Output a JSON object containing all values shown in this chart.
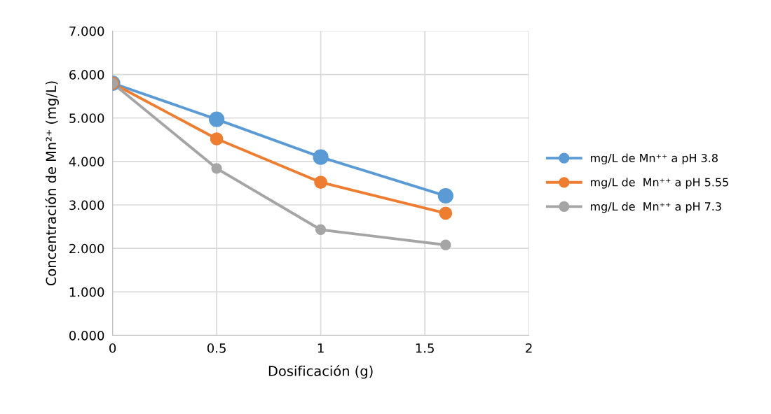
{
  "chart_data": {
    "type": "line",
    "xlabel": "Dosificación (g)",
    "ylabel": "Concentración de Mn²⁺ (mg/L)",
    "x": [
      0,
      0.5,
      1,
      1.6
    ],
    "series": [
      {
        "name": "mg/L de Mn⁺⁺ a pH 3.8",
        "color": "#5b9bd5",
        "values": [
          5.8,
          4.97,
          4.1,
          3.21
        ]
      },
      {
        "name": "mg/L de  Mn⁺⁺ a pH 5.55",
        "color": "#ed7d31",
        "values": [
          5.8,
          4.52,
          3.52,
          2.81
        ]
      },
      {
        "name": "mg/L de  Mn⁺⁺ a pH 7.3",
        "color": "#a5a5a5",
        "values": [
          5.8,
          3.84,
          2.43,
          2.08
        ]
      }
    ],
    "xlim": [
      0,
      2
    ],
    "xticks": [
      0,
      0.5,
      1,
      1.5,
      2
    ],
    "ylim": [
      0,
      7
    ],
    "yticks": [
      {
        "value": 0,
        "label": "0.000"
      },
      {
        "value": 1,
        "label": "1.000"
      },
      {
        "value": 2,
        "label": "2.000"
      },
      {
        "value": 3,
        "label": "3.000"
      },
      {
        "value": 4,
        "label": "4.000"
      },
      {
        "value": 5,
        "label": "5.000"
      },
      {
        "value": 6,
        "label": "6.000"
      },
      {
        "value": 7,
        "label": "7.000"
      }
    ],
    "grid": true,
    "legend": "right",
    "marker": "circle",
    "line_style": "solid"
  }
}
